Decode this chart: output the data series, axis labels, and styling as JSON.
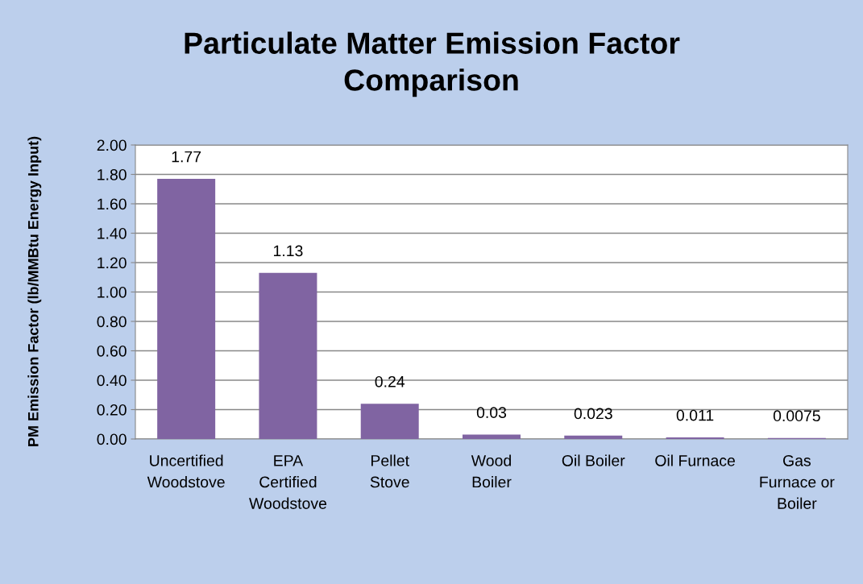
{
  "chart_data": {
    "type": "bar",
    "title": "Particulate Matter Emission Factor\nComparison",
    "ylabel": "PM Emission Factor (lb/MMBtu Energy Input)",
    "categories": [
      "Uncertified\nWoodstove",
      "EPA\nCertified\nWoodstove",
      "Pellet\nStove",
      "Wood\nBoiler",
      "Oil Boiler",
      "Oil Furnace",
      "Gas\nFurnace or\nBoiler"
    ],
    "values": [
      1.77,
      1.13,
      0.24,
      0.03,
      0.023,
      0.011,
      0.0075
    ],
    "color": "#8064a2",
    "ylim": [
      0,
      2
    ],
    "yticks": [
      {
        "value": 0,
        "label": "0.00"
      },
      {
        "value": 0.2,
        "label": "0.20"
      },
      {
        "value": 0.4,
        "label": "0.40"
      },
      {
        "value": 0.6,
        "label": "0.60"
      },
      {
        "value": 0.8,
        "label": "0.80"
      },
      {
        "value": 1,
        "label": "1.00"
      },
      {
        "value": 1.2,
        "label": "1.20"
      },
      {
        "value": 1.4,
        "label": "1.40"
      },
      {
        "value": 1.6,
        "label": "1.60"
      },
      {
        "value": 1.8,
        "label": "1.80"
      },
      {
        "value": 2,
        "label": "2.00"
      }
    ],
    "grid": "y",
    "data_labels": true,
    "legend": false
  }
}
